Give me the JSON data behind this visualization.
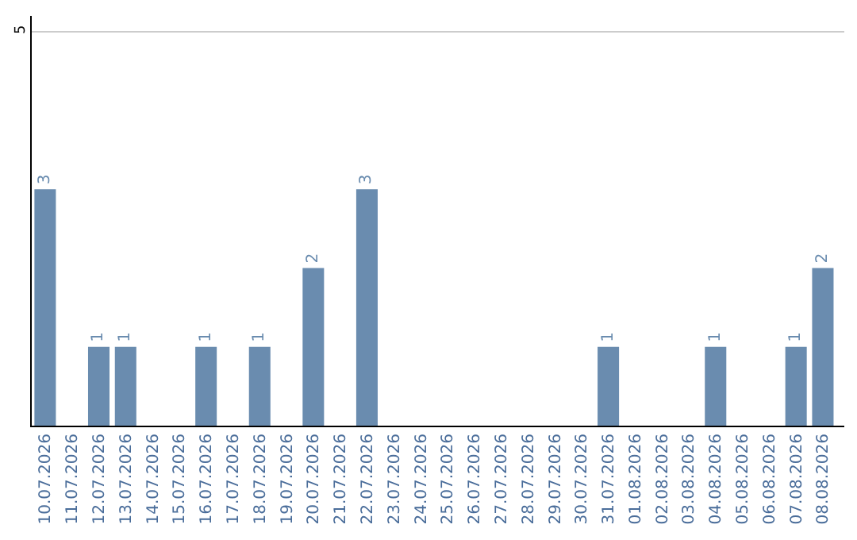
{
  "chart_data": {
    "type": "bar",
    "categories": [
      "10.07.2026",
      "11.07.2026",
      "12.07.2026",
      "13.07.2026",
      "14.07.2026",
      "15.07.2026",
      "16.07.2026",
      "17.07.2026",
      "18.07.2026",
      "19.07.2026",
      "20.07.2026",
      "21.07.2026",
      "22.07.2026",
      "23.07.2026",
      "24.07.2026",
      "25.07.2026",
      "26.07.2026",
      "27.07.2026",
      "28.07.2026",
      "29.07.2026",
      "30.07.2026",
      "31.07.2026",
      "01.08.2026",
      "02.08.2026",
      "03.08.2026",
      "04.08.2026",
      "05.08.2026",
      "06.08.2026",
      "07.08.2026",
      "08.08.2026"
    ],
    "values": [
      3,
      0,
      1,
      1,
      0,
      0,
      1,
      0,
      1,
      0,
      2,
      0,
      3,
      0,
      0,
      0,
      0,
      0,
      0,
      0,
      0,
      1,
      0,
      0,
      0,
      1,
      0,
      0,
      1,
      2
    ],
    "value_labels": [
      "3",
      null,
      "1",
      "1",
      null,
      null,
      "1",
      null,
      "1",
      null,
      "2",
      null,
      "3",
      null,
      null,
      null,
      null,
      null,
      null,
      null,
      null,
      "1",
      null,
      null,
      null,
      "1",
      null,
      null,
      "1",
      "2"
    ],
    "color": "#6a8caf",
    "ylim": [
      0,
      5.2
    ],
    "yticks": [
      5
    ],
    "grid": "y",
    "legend": false
  }
}
